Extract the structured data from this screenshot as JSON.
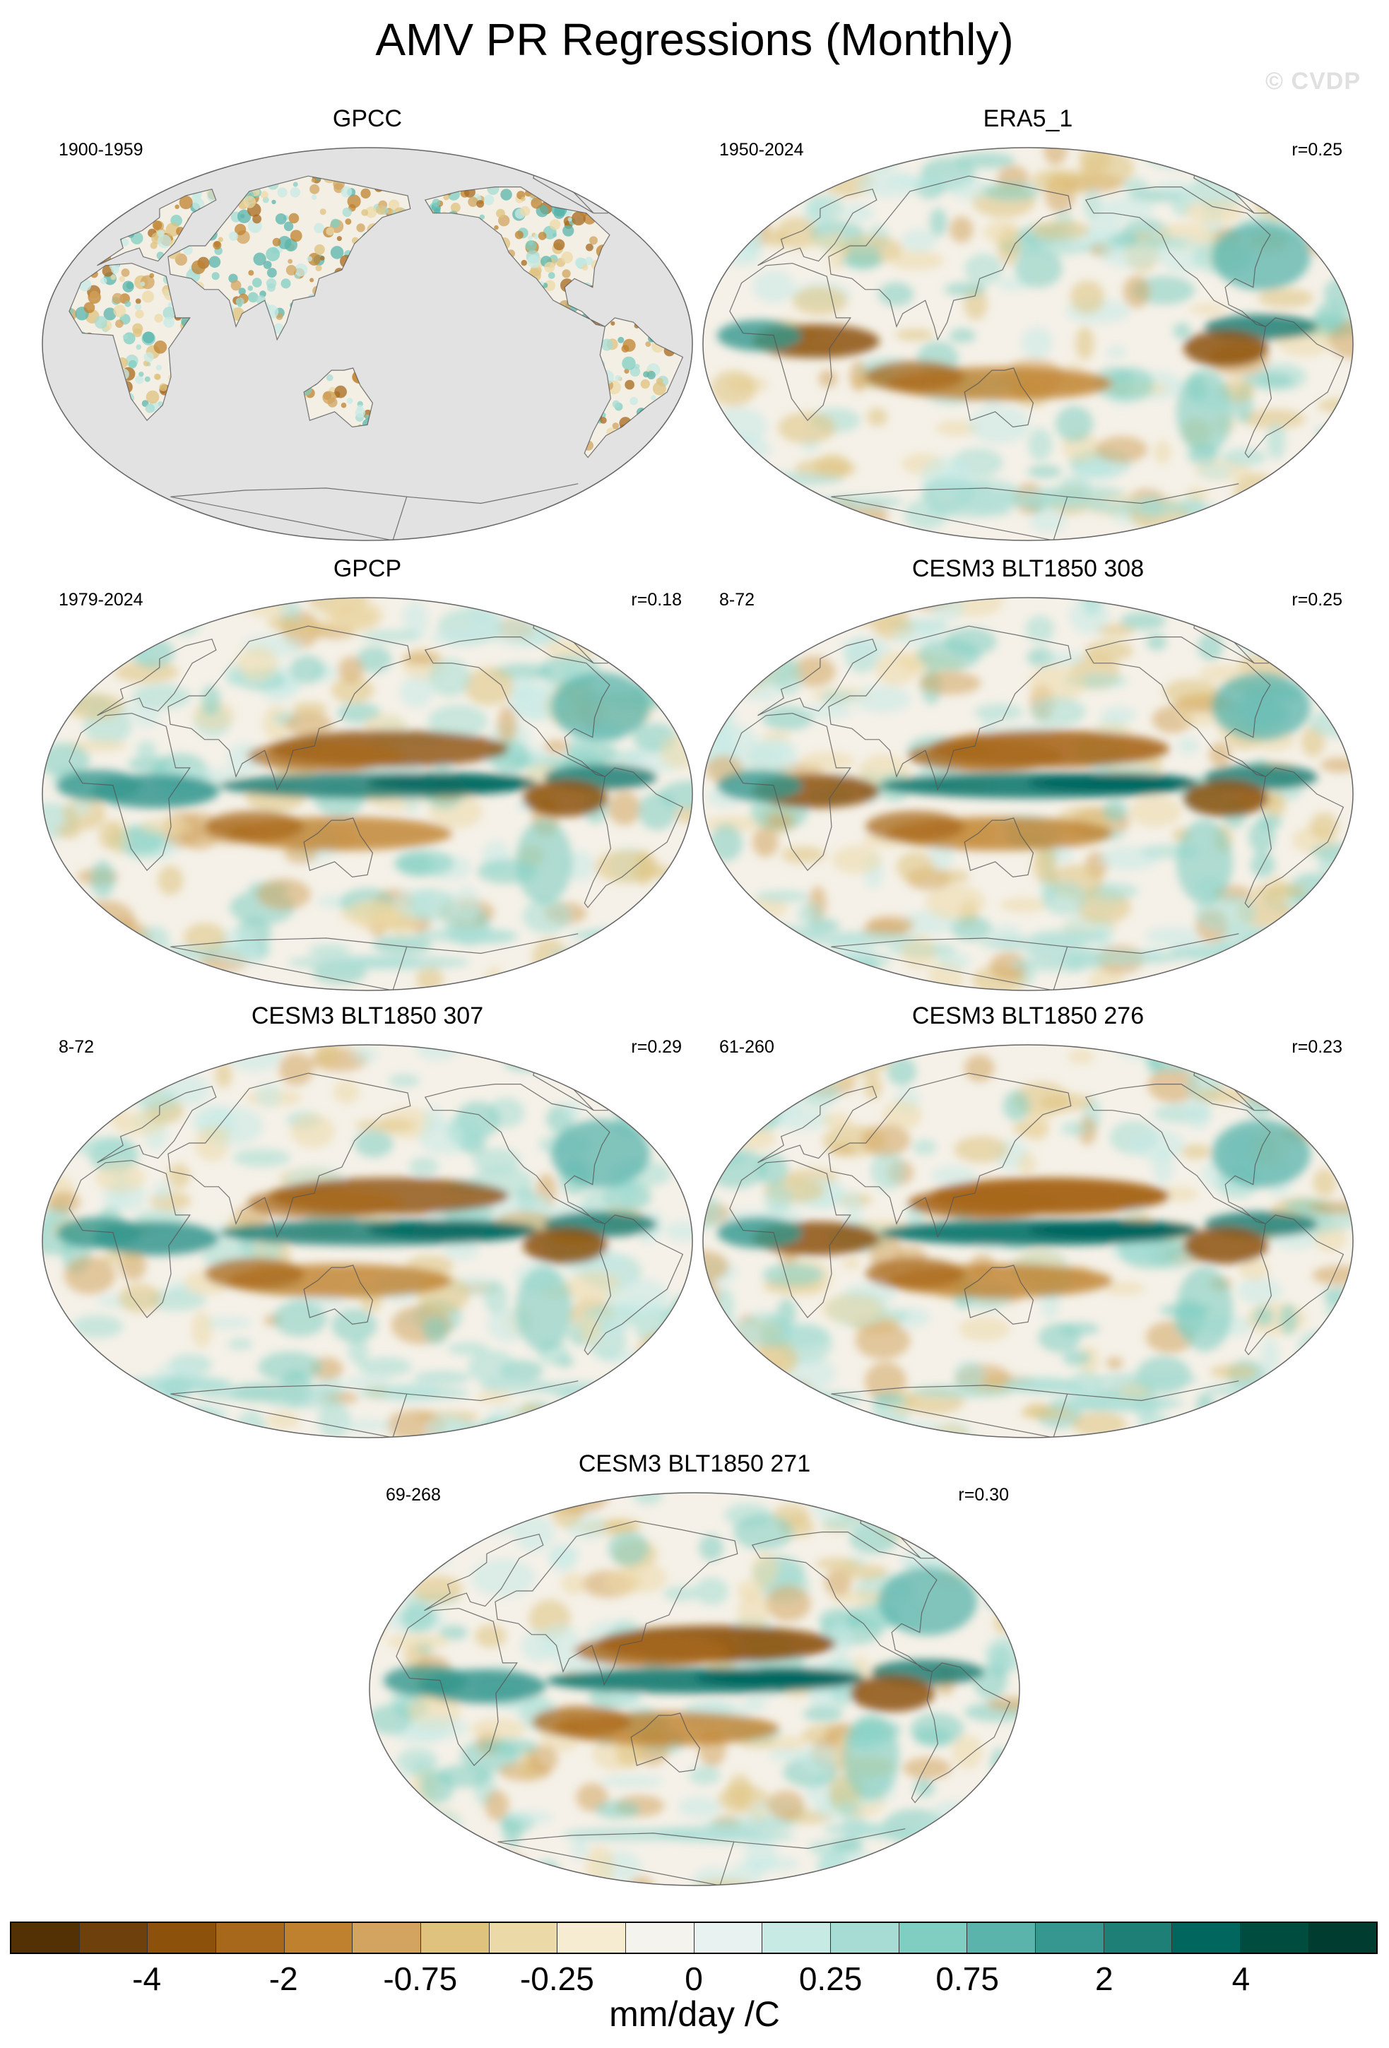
{
  "figure": {
    "title": "AMV PR Regressions (Monthly)",
    "watermark": "© CVDP"
  },
  "panels": [
    {
      "name": "GPCC",
      "years": "1900-1959",
      "corr": "",
      "style": "land-only"
    },
    {
      "name": "ERA5_1",
      "years": "1950-2024",
      "corr": "r=0.25",
      "style": "full"
    },
    {
      "name": "GPCP",
      "years": "1979-2024",
      "corr": "r=0.18",
      "style": "full"
    },
    {
      "name": "CESM3 BLT1850 308",
      "years": "8-72",
      "corr": "r=0.25",
      "style": "full"
    },
    {
      "name": "CESM3 BLT1850 307",
      "years": "8-72",
      "corr": "r=0.29",
      "style": "full"
    },
    {
      "name": "CESM3 BLT1850 276",
      "years": "61-260",
      "corr": "r=0.23",
      "style": "full"
    },
    {
      "name": "CESM3 BLT1850 271",
      "years": "69-268",
      "corr": "r=0.30",
      "style": "full"
    }
  ],
  "colorbar": {
    "units": "mm/day /C",
    "labels": [
      "-4",
      "-2",
      "-0.75",
      "-0.25",
      "0",
      "0.25",
      "0.75",
      "2",
      "4"
    ],
    "colors": [
      "#543005",
      "#6e400c",
      "#8c510a",
      "#a8681c",
      "#bf812d",
      "#d2a45f",
      "#dfc27d",
      "#ecd9a8",
      "#f6ecd2",
      "#f5f3ee",
      "#e8f3f1",
      "#c7eae5",
      "#a6dcd4",
      "#80cdc1",
      "#5ab4ac",
      "#35978f",
      "#1d7f76",
      "#01665e",
      "#004d40",
      "#003c30"
    ]
  }
}
